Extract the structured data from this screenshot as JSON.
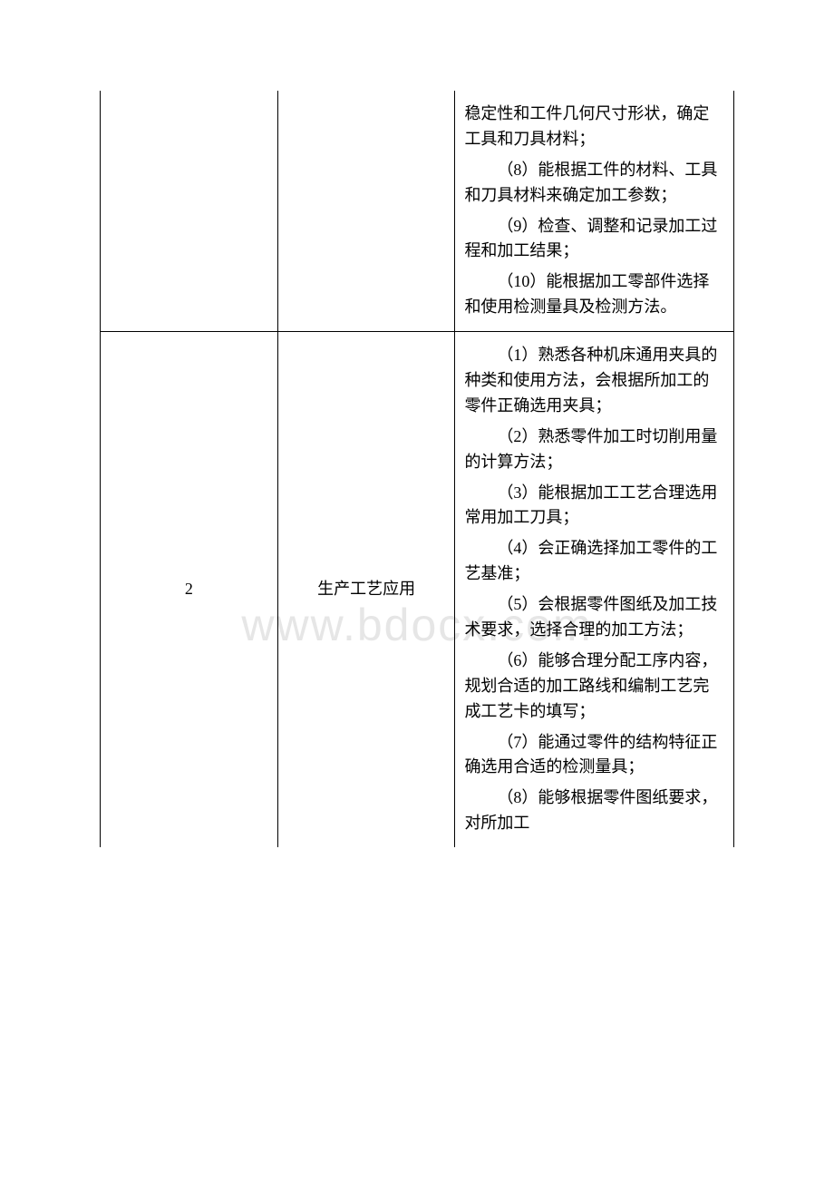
{
  "watermark": "www.bdocx.com",
  "table": {
    "row1": {
      "col1": "",
      "col2": "",
      "cell3": {
        "p1": "稳定性和工件几何尺寸形状，确定工具和刀具材料；",
        "p2": "（8）能根据工件的材料、工具和刀具材料来确定加工参数；",
        "p3": "（9）检查、调整和记录加工过程和加工结果；",
        "p4": "（10）能根据加工零部件选择和使用检测量具及检测方法。"
      }
    },
    "row2": {
      "col1": "2",
      "col2": "生产工艺应用",
      "cell3": {
        "p1": "（1）熟悉各种机床通用夹具的种类和使用方法，会根据所加工的零件正确选用夹具；",
        "p2": "（2）熟悉零件加工时切削用量的计算方法；",
        "p3": "（3）能根据加工工艺合理选用常用加工刀具；",
        "p4": "（4）会正确选择加工零件的工艺基准；",
        "p5": "（5）会根据零件图纸及加工技术要求，选择合理的加工方法；",
        "p6": "（6）能够合理分配工序内容，规划合适的加工路线和编制工艺完成工艺卡的填写；",
        "p7": "（7）能通过零件的结构特征正确选用合适的检测量具；",
        "p8": "（8）能够根据零件图纸要求，对所加工"
      }
    }
  }
}
